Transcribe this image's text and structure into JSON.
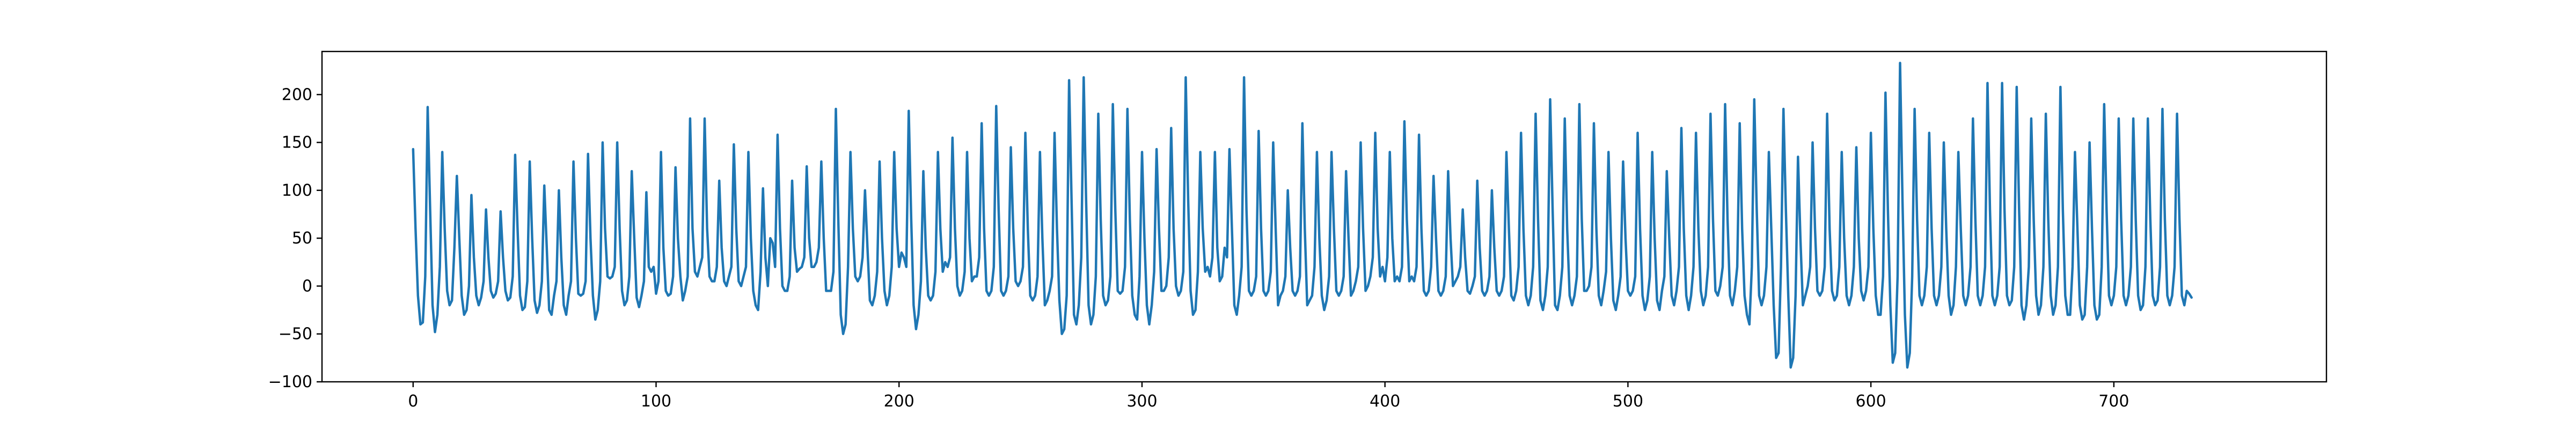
{
  "chart_data": {
    "type": "line",
    "title": "",
    "xlabel": "",
    "ylabel": "",
    "xlim": [
      -37.5,
      787.5
    ],
    "ylim": [
      -100,
      245
    ],
    "grid": false,
    "x_ticks": [
      0,
      100,
      200,
      300,
      400,
      500,
      600,
      700
    ],
    "x_tick_labels": [
      "0",
      "100",
      "200",
      "300",
      "400",
      "500",
      "600",
      "700"
    ],
    "y_ticks": [
      -100,
      -50,
      0,
      50,
      100,
      150,
      200
    ],
    "y_tick_labels": [
      "−100",
      "−50",
      "0",
      "50",
      "100",
      "150",
      "200"
    ],
    "series": [
      {
        "color": "#1f77b4",
        "x_start": 0,
        "x_step": 1,
        "values": [
          143,
          60,
          -10,
          -40,
          -38,
          10,
          187,
          80,
          -20,
          -48,
          -30,
          20,
          140,
          60,
          -5,
          -20,
          -15,
          40,
          115,
          50,
          -10,
          -30,
          -25,
          0,
          95,
          30,
          -10,
          -20,
          -12,
          5,
          80,
          30,
          -5,
          -12,
          -8,
          5,
          78,
          30,
          -5,
          -15,
          -12,
          10,
          137,
          60,
          -10,
          -25,
          -22,
          5,
          130,
          50,
          -15,
          -28,
          -20,
          5,
          105,
          40,
          -25,
          -30,
          -10,
          5,
          100,
          30,
          -20,
          -30,
          -10,
          5,
          130,
          50,
          -8,
          -10,
          -8,
          5,
          138,
          50,
          -10,
          -35,
          -25,
          5,
          150,
          60,
          10,
          8,
          10,
          20,
          150,
          60,
          -5,
          -20,
          -15,
          10,
          120,
          50,
          -12,
          -22,
          -10,
          5,
          98,
          20,
          15,
          20,
          -8,
          5,
          140,
          40,
          -5,
          -10,
          -8,
          10,
          124,
          50,
          10,
          -15,
          -5,
          10,
          175,
          60,
          15,
          10,
          20,
          30,
          175,
          60,
          10,
          5,
          5,
          20,
          110,
          40,
          5,
          0,
          10,
          20,
          148,
          60,
          5,
          0,
          10,
          20,
          140,
          50,
          -5,
          -20,
          -25,
          15,
          102,
          30,
          0,
          50,
          45,
          20,
          158,
          60,
          0,
          -5,
          -5,
          10,
          110,
          40,
          15,
          18,
          20,
          30,
          125,
          50,
          20,
          20,
          25,
          40,
          130,
          50,
          -5,
          -5,
          -5,
          15,
          185,
          70,
          -30,
          -50,
          -40,
          20,
          140,
          60,
          10,
          5,
          10,
          30,
          100,
          40,
          -15,
          -20,
          -10,
          15,
          130,
          50,
          -5,
          -20,
          -10,
          20,
          140,
          60,
          20,
          35,
          30,
          20,
          183,
          70,
          -20,
          -45,
          -30,
          5,
          120,
          40,
          -10,
          -15,
          -10,
          15,
          140,
          60,
          15,
          25,
          20,
          30,
          155,
          60,
          0,
          -10,
          -5,
          15,
          140,
          50,
          5,
          10,
          10,
          30,
          170,
          60,
          -5,
          -10,
          -5,
          20,
          188,
          80,
          -5,
          -10,
          -5,
          10,
          145,
          60,
          5,
          0,
          5,
          20,
          160,
          60,
          -10,
          -15,
          -10,
          10,
          140,
          50,
          -20,
          -15,
          -5,
          10,
          160,
          60,
          -15,
          -50,
          -45,
          -10,
          215,
          90,
          -30,
          -40,
          -20,
          30,
          218,
          90,
          -20,
          -40,
          -30,
          10,
          180,
          70,
          -10,
          -20,
          -15,
          10,
          190,
          80,
          -5,
          -8,
          -5,
          20,
          185,
          70,
          -10,
          -30,
          -35,
          10,
          140,
          50,
          -20,
          -40,
          -20,
          15,
          143,
          60,
          -5,
          -5,
          0,
          30,
          165,
          60,
          0,
          -10,
          -5,
          15,
          218,
          90,
          -5,
          -30,
          -25,
          15,
          140,
          60,
          15,
          20,
          10,
          30,
          140,
          40,
          5,
          10,
          40,
          30,
          143,
          60,
          -20,
          -30,
          -10,
          20,
          218,
          80,
          -5,
          -10,
          -5,
          10,
          162,
          60,
          -5,
          -10,
          -5,
          15,
          150,
          60,
          -20,
          -10,
          -5,
          10,
          100,
          40,
          -5,
          -10,
          -5,
          10,
          170,
          60,
          -20,
          -15,
          -10,
          20,
          140,
          50,
          -10,
          -25,
          -15,
          10,
          140,
          60,
          -5,
          -10,
          -5,
          10,
          120,
          50,
          -10,
          -5,
          5,
          20,
          150,
          60,
          -5,
          0,
          10,
          30,
          160,
          60,
          10,
          20,
          5,
          30,
          140,
          50,
          5,
          10,
          5,
          20,
          172,
          70,
          5,
          10,
          5,
          20,
          158,
          60,
          -5,
          -10,
          -5,
          20,
          115,
          50,
          -5,
          -10,
          -5,
          10,
          120,
          50,
          0,
          5,
          10,
          20,
          80,
          30,
          -5,
          -8,
          0,
          10,
          110,
          40,
          -5,
          -10,
          -5,
          10,
          100,
          40,
          -5,
          -10,
          -5,
          10,
          140,
          60,
          -10,
          -15,
          -5,
          20,
          160,
          60,
          -10,
          -20,
          -10,
          20,
          180,
          70,
          -15,
          -25,
          -10,
          20,
          195,
          80,
          -20,
          -25,
          -10,
          20,
          175,
          60,
          -10,
          -20,
          -10,
          10,
          190,
          70,
          -5,
          -5,
          0,
          20,
          170,
          60,
          -10,
          -20,
          -5,
          15,
          140,
          50,
          -15,
          -25,
          -10,
          10,
          130,
          50,
          -5,
          -10,
          -5,
          10,
          160,
          60,
          -10,
          -25,
          -15,
          10,
          140,
          50,
          -15,
          -25,
          -5,
          10,
          120,
          50,
          -10,
          -20,
          -5,
          20,
          165,
          60,
          -10,
          -25,
          -10,
          20,
          160,
          60,
          -5,
          -20,
          -10,
          20,
          180,
          70,
          -5,
          -10,
          0,
          20,
          190,
          70,
          -10,
          -20,
          -5,
          20,
          170,
          60,
          -10,
          -30,
          -40,
          20,
          195,
          80,
          -10,
          -20,
          -10,
          20,
          140,
          60,
          -20,
          -75,
          -70,
          20,
          185,
          80,
          -10,
          -85,
          -75,
          -10,
          135,
          50,
          -20,
          -10,
          0,
          20,
          150,
          60,
          -5,
          -10,
          -5,
          20,
          180,
          60,
          -5,
          -15,
          -10,
          20,
          140,
          50,
          -10,
          -20,
          -10,
          20,
          145,
          50,
          -5,
          -15,
          -5,
          20,
          160,
          60,
          -10,
          -30,
          -30,
          10,
          202,
          80,
          -20,
          -80,
          -70,
          10,
          233,
          90,
          -30,
          -85,
          -70,
          10,
          185,
          70,
          -10,
          -20,
          -10,
          20,
          160,
          60,
          -10,
          -20,
          -10,
          20,
          150,
          60,
          -10,
          -30,
          -20,
          20,
          140,
          60,
          -10,
          -20,
          -10,
          20,
          175,
          70,
          -10,
          -20,
          -10,
          20,
          212,
          80,
          -10,
          -20,
          -10,
          20,
          212,
          80,
          -10,
          -20,
          -15,
          20,
          208,
          80,
          -20,
          -35,
          -20,
          20,
          175,
          70,
          -10,
          -30,
          -20,
          20,
          180,
          70,
          -10,
          -30,
          -20,
          20,
          208,
          80,
          -10,
          -30,
          -30,
          20,
          140,
          60,
          -20,
          -35,
          -30,
          20,
          150,
          60,
          -20,
          -35,
          -30,
          20,
          190,
          80,
          -10,
          -20,
          -10,
          20,
          175,
          70,
          -10,
          -20,
          -10,
          20,
          175,
          70,
          -10,
          -25,
          -20,
          20,
          175,
          70,
          -10,
          -20,
          -15,
          20,
          185,
          70,
          -10,
          -20,
          -10,
          20,
          180,
          70,
          -10,
          -20,
          -5,
          -8,
          -12
        ]
      }
    ]
  }
}
